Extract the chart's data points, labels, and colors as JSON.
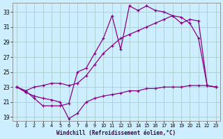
{
  "xlabel": "Windchill (Refroidissement éolien,°C)",
  "bg_color": "#cceeff",
  "line_color": "#880088",
  "grid_color": "#aacccc",
  "xlim": [
    -0.5,
    23.5
  ],
  "ylim": [
    18.5,
    34.2
  ],
  "xticks": [
    0,
    1,
    2,
    3,
    4,
    5,
    6,
    7,
    8,
    9,
    10,
    11,
    12,
    13,
    14,
    15,
    16,
    17,
    18,
    19,
    20,
    21,
    22,
    23
  ],
  "yticks": [
    19,
    21,
    23,
    25,
    27,
    29,
    31,
    33
  ],
  "series_upper_x": [
    0,
    1,
    2,
    3,
    4,
    5,
    6,
    7,
    8,
    9,
    10,
    11,
    12,
    13,
    14,
    15,
    16,
    17,
    18,
    19,
    20,
    21,
    22,
    23
  ],
  "series_upper_y": [
    23.0,
    22.5,
    21.5,
    20.5,
    20.5,
    20.5,
    20.8,
    25.0,
    25.5,
    27.5,
    29.5,
    32.5,
    28.0,
    33.8,
    33.2,
    33.8,
    33.2,
    33.0,
    32.5,
    32.3,
    31.5,
    29.5,
    23.2,
    23.0
  ],
  "series_mid_x": [
    0,
    1,
    2,
    3,
    4,
    5,
    6,
    7,
    8,
    9,
    10,
    11,
    12,
    13,
    14,
    15,
    16,
    17,
    18,
    19,
    20,
    21,
    22,
    23
  ],
  "series_mid_y": [
    23.0,
    22.5,
    23.0,
    23.2,
    23.5,
    23.5,
    23.2,
    23.5,
    24.5,
    26.0,
    27.5,
    28.5,
    29.5,
    30.0,
    30.5,
    31.0,
    31.5,
    32.0,
    32.5,
    31.5,
    32.0,
    31.8,
    23.2,
    23.0
  ],
  "series_lower_x": [
    0,
    1,
    2,
    3,
    4,
    5,
    6,
    7,
    8,
    9,
    10,
    11,
    12,
    13,
    14,
    15,
    16,
    17,
    18,
    19,
    20,
    21,
    22,
    23
  ],
  "series_lower_y": [
    23.0,
    22.3,
    21.8,
    21.5,
    21.3,
    21.0,
    18.8,
    19.5,
    21.0,
    21.5,
    21.8,
    22.0,
    22.2,
    22.5,
    22.5,
    22.8,
    22.8,
    23.0,
    23.0,
    23.0,
    23.2,
    23.2,
    23.2,
    23.0
  ]
}
